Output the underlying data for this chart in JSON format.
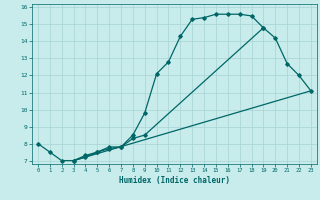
{
  "xlabel": "Humidex (Indice chaleur)",
  "bg_color": "#c8ecec",
  "grid_color": "#a8d4d4",
  "line_color": "#006666",
  "xlim": [
    -0.5,
    23.5
  ],
  "ylim": [
    6.8,
    16.2
  ],
  "xticks": [
    0,
    1,
    2,
    3,
    4,
    5,
    6,
    7,
    8,
    9,
    10,
    11,
    12,
    13,
    14,
    15,
    16,
    17,
    18,
    19,
    20,
    21,
    22,
    23
  ],
  "yticks": [
    7,
    8,
    9,
    10,
    11,
    12,
    13,
    14,
    15,
    16
  ],
  "line1_x": [
    0,
    1,
    2,
    3,
    4,
    5,
    6,
    7,
    8,
    9,
    10,
    11,
    12,
    13,
    14,
    15,
    16,
    17,
    18,
    19
  ],
  "line1_y": [
    8.0,
    7.5,
    7.0,
    7.0,
    7.2,
    7.5,
    7.8,
    7.8,
    8.5,
    9.8,
    12.1,
    12.8,
    14.3,
    15.3,
    15.4,
    15.6,
    15.6,
    15.6,
    15.5,
    14.8
  ],
  "line2_x": [
    3,
    4,
    5,
    6,
    7,
    8,
    9,
    19,
    20,
    21,
    22,
    23
  ],
  "line2_y": [
    7.0,
    7.3,
    7.5,
    7.7,
    7.8,
    8.3,
    8.5,
    14.8,
    14.2,
    12.7,
    12.0,
    11.1
  ],
  "line3_x": [
    3,
    23
  ],
  "line3_y": [
    7.0,
    11.1
  ]
}
